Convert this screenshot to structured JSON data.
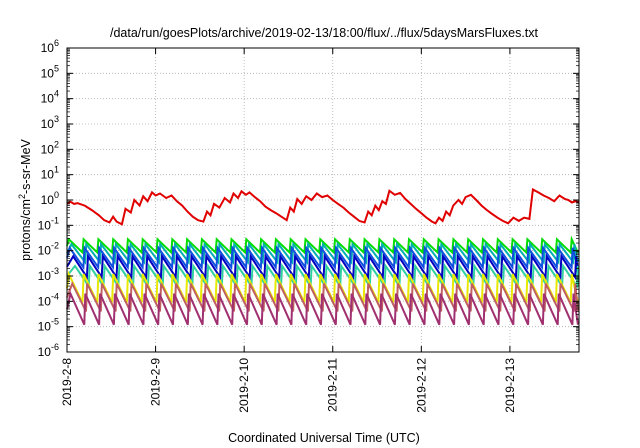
{
  "chart_data": {
    "type": "line",
    "title": "/data/run/goesPlots/archive/2019-02-13/18:00/flux/../flux/5daysMarsFluxes.txt",
    "xlabel": "Coordinated Universal Time (UTC)",
    "ylabel": "protons/cm²-s-sr-MeV",
    "ylabel_parts": {
      "pre": "protons/cm",
      "sup": "2",
      "post": "-s-sr-MeV"
    },
    "y_scale": "log",
    "ylim": [
      1e-06,
      1000000.0
    ],
    "y_ticks": [
      {
        "value": 1e-06,
        "base": "10",
        "exp": "-6"
      },
      {
        "value": 1e-05,
        "base": "10",
        "exp": "-5"
      },
      {
        "value": 0.0001,
        "base": "10",
        "exp": "-4"
      },
      {
        "value": 0.001,
        "base": "10",
        "exp": "-3"
      },
      {
        "value": 0.01,
        "base": "10",
        "exp": "-2"
      },
      {
        "value": 0.1,
        "base": "10",
        "exp": "-1"
      },
      {
        "value": 1.0,
        "base": "10",
        "exp": "0"
      },
      {
        "value": 10.0,
        "base": "10",
        "exp": "1"
      },
      {
        "value": 100.0,
        "base": "10",
        "exp": "2"
      },
      {
        "value": 1000.0,
        "base": "10",
        "exp": "3"
      },
      {
        "value": 10000.0,
        "base": "10",
        "exp": "4"
      },
      {
        "value": 100000.0,
        "base": "10",
        "exp": "5"
      },
      {
        "value": 1000000.0,
        "base": "10",
        "exp": "6"
      }
    ],
    "xlim": [
      0,
      5.78
    ],
    "x_ticks": [
      {
        "value": 0,
        "label": "2019-2-8"
      },
      {
        "value": 1,
        "label": "2019-2-9"
      },
      {
        "value": 2,
        "label": "2019-2-10"
      },
      {
        "value": 3,
        "label": "2019-2-11"
      },
      {
        "value": 4,
        "label": "2019-2-12"
      },
      {
        "value": 5,
        "label": "2019-2-13"
      }
    ],
    "grid": true,
    "series": [
      {
        "color": "#e00000",
        "pattern": "sawtooth",
        "points": [
          [
            0.0,
            0.7
          ],
          [
            0.04,
            0.85
          ],
          [
            0.08,
            0.7
          ],
          [
            0.12,
            0.75
          ],
          [
            0.2,
            0.6
          ],
          [
            0.28,
            0.4
          ],
          [
            0.36,
            0.25
          ],
          [
            0.42,
            0.16
          ],
          [
            0.48,
            0.13
          ],
          [
            0.52,
            0.22
          ],
          [
            0.56,
            0.14
          ],
          [
            0.62,
            0.11
          ],
          [
            0.66,
            0.45
          ],
          [
            0.72,
            0.32
          ],
          [
            0.76,
            1.0
          ],
          [
            0.82,
            0.6
          ],
          [
            0.86,
            1.4
          ],
          [
            0.91,
            0.9
          ],
          [
            0.96,
            2.0
          ],
          [
            1.0,
            1.5
          ],
          [
            1.05,
            1.8
          ],
          [
            1.12,
            1.2
          ],
          [
            1.18,
            1.5
          ],
          [
            1.24,
            0.9
          ],
          [
            1.3,
            0.6
          ],
          [
            1.36,
            0.35
          ],
          [
            1.42,
            0.22
          ],
          [
            1.48,
            0.16
          ],
          [
            1.54,
            0.14
          ],
          [
            1.58,
            0.35
          ],
          [
            1.62,
            0.25
          ],
          [
            1.66,
            0.7
          ],
          [
            1.72,
            0.5
          ],
          [
            1.78,
            1.2
          ],
          [
            1.84,
            0.8
          ],
          [
            1.88,
            1.8
          ],
          [
            1.93,
            1.2
          ],
          [
            1.97,
            2.2
          ],
          [
            2.02,
            1.6
          ],
          [
            2.06,
            2.0
          ],
          [
            2.12,
            1.3
          ],
          [
            2.18,
            0.9
          ],
          [
            2.24,
            0.55
          ],
          [
            2.3,
            0.4
          ],
          [
            2.36,
            0.3
          ],
          [
            2.42,
            0.22
          ],
          [
            2.48,
            0.16
          ],
          [
            2.52,
            0.5
          ],
          [
            2.56,
            0.35
          ],
          [
            2.6,
            1.1
          ],
          [
            2.65,
            0.7
          ],
          [
            2.7,
            1.4
          ],
          [
            2.76,
            1.0
          ],
          [
            2.82,
            1.8
          ],
          [
            2.88,
            1.3
          ],
          [
            2.94,
            1.5
          ],
          [
            3.0,
            1.0
          ],
          [
            3.06,
            0.7
          ],
          [
            3.12,
            0.5
          ],
          [
            3.18,
            0.32
          ],
          [
            3.24,
            0.22
          ],
          [
            3.3,
            0.15
          ],
          [
            3.36,
            0.13
          ],
          [
            3.4,
            0.35
          ],
          [
            3.44,
            0.25
          ],
          [
            3.48,
            0.6
          ],
          [
            3.52,
            0.4
          ],
          [
            3.56,
            0.9
          ],
          [
            3.6,
            0.7
          ],
          [
            3.64,
            2.3
          ],
          [
            3.7,
            1.6
          ],
          [
            3.76,
            1.9
          ],
          [
            3.82,
            1.1
          ],
          [
            3.88,
            0.7
          ],
          [
            3.94,
            0.45
          ],
          [
            4.0,
            0.3
          ],
          [
            4.06,
            0.2
          ],
          [
            4.12,
            0.14
          ],
          [
            4.16,
            0.12
          ],
          [
            4.2,
            0.2
          ],
          [
            4.24,
            0.15
          ],
          [
            4.28,
            0.35
          ],
          [
            4.32,
            0.25
          ],
          [
            4.36,
            0.6
          ],
          [
            4.42,
            1.0
          ],
          [
            4.46,
            0.7
          ],
          [
            4.5,
            1.3
          ],
          [
            4.56,
            1.6
          ],
          [
            4.62,
            1.0
          ],
          [
            4.68,
            0.6
          ],
          [
            4.74,
            0.4
          ],
          [
            4.8,
            0.28
          ],
          [
            4.86,
            0.2
          ],
          [
            4.92,
            0.15
          ],
          [
            4.98,
            0.12
          ],
          [
            5.04,
            0.2
          ],
          [
            5.1,
            0.15
          ],
          [
            5.16,
            0.2
          ],
          [
            5.22,
            0.18
          ],
          [
            5.26,
            2.6
          ],
          [
            5.32,
            2.0
          ],
          [
            5.38,
            1.5
          ],
          [
            5.44,
            1.2
          ],
          [
            5.5,
            0.9
          ],
          [
            5.56,
            1.5
          ],
          [
            5.62,
            1.1
          ],
          [
            5.66,
            1.0
          ],
          [
            5.7,
            0.8
          ],
          [
            5.74,
            0.9
          ],
          [
            5.78,
            0.8
          ]
        ]
      },
      {
        "color": "#00dd00",
        "pattern": "sawtooth",
        "period": 0.167,
        "start": 0.02,
        "peak": 0.028,
        "trough": 0.0085
      },
      {
        "color": "#00b0b0",
        "pattern": "sawtooth",
        "period": 0.167,
        "start": 0.05,
        "peak": 0.018,
        "trough": 0.0035
      },
      {
        "color": "#1050e0",
        "pattern": "sawtooth",
        "period": 0.167,
        "start": 0.03,
        "peak": 0.013,
        "trough": 0.0022
      },
      {
        "color": "#0000c0",
        "pattern": "sawtooth",
        "period": 0.167,
        "start": 0.07,
        "peak": 0.006,
        "trough": 0.0009
      },
      {
        "color": "#30d0a0",
        "pattern": "sawtooth",
        "period": 0.167,
        "start": 0.09,
        "peak": 0.0025,
        "trough": 0.0004
      },
      {
        "color": "#e8e800",
        "pattern": "sawtooth",
        "period": 0.167,
        "start": 0.02,
        "peak": 0.0012,
        "trough": 9e-05
      },
      {
        "color": "#c06060",
        "pattern": "sawtooth",
        "period": 0.167,
        "start": 0.06,
        "peak": 0.0005,
        "trough": 4e-05
      },
      {
        "color": "#a03070",
        "pattern": "sawtooth",
        "period": 0.167,
        "start": 0.04,
        "peak": 0.0002,
        "trough": 1.2e-05
      }
    ]
  }
}
